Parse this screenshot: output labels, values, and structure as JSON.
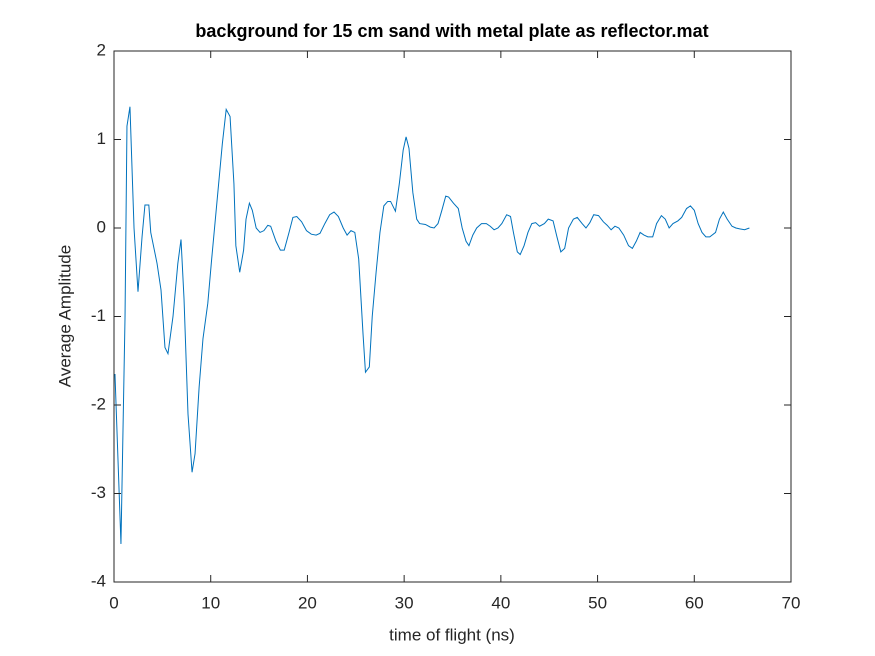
{
  "chart_data": {
    "type": "line",
    "title": "background for 15 cm sand with metal plate as reflector.mat",
    "xlabel": "time of flight (ns)",
    "ylabel": "Average Amplitude",
    "color": "#0072bd",
    "xlim": [
      0,
      70
    ],
    "xticks": [
      0,
      10,
      20,
      30,
      40,
      50,
      60,
      70
    ],
    "ylim": [
      -4,
      2
    ],
    "yticks": [
      -4,
      -3,
      -2,
      -1,
      0,
      1,
      2
    ],
    "x": [
      0.1,
      0.72,
      1.14,
      1.34,
      1.65,
      2.07,
      2.48,
      2.9,
      3.2,
      3.6,
      3.8,
      4.45,
      4.86,
      5.27,
      5.58,
      6.1,
      6.6,
      6.93,
      7.24,
      7.65,
      8.07,
      8.38,
      8.8,
      9.2,
      9.7,
      10.1,
      10.65,
      11.2,
      11.6,
      12.0,
      12.4,
      12.6,
      13.0,
      13.4,
      13.65,
      14.0,
      14.3,
      14.7,
      15.1,
      15.5,
      15.9,
      16.2,
      16.75,
      17.2,
      17.6,
      18.1,
      18.5,
      18.9,
      19.4,
      19.9,
      20.4,
      20.9,
      21.3,
      21.8,
      22.3,
      22.75,
      23.2,
      23.7,
      24.1,
      24.5,
      24.9,
      25.3,
      25.75,
      26.0,
      26.4,
      26.7,
      27.1,
      27.5,
      27.9,
      28.3,
      28.6,
      29.1,
      29.5,
      29.9,
      30.2,
      30.5,
      30.9,
      31.3,
      31.6,
      32.2,
      32.7,
      33.1,
      33.5,
      33.9,
      34.3,
      34.6,
      35.1,
      35.6,
      36.0,
      36.4,
      36.7,
      37.1,
      37.5,
      38.0,
      38.5,
      38.9,
      39.3,
      39.7,
      40.1,
      40.6,
      41.0,
      41.3,
      41.7,
      42.0,
      42.4,
      42.8,
      43.2,
      43.6,
      44.0,
      44.5,
      44.9,
      45.4,
      45.8,
      46.2,
      46.6,
      47.0,
      47.5,
      47.9,
      48.4,
      48.8,
      49.2,
      49.6,
      50.1,
      50.6,
      51.0,
      51.4,
      51.8,
      52.2,
      52.7,
      53.2,
      53.6,
      54.0,
      54.4,
      54.8,
      55.2,
      55.7,
      56.1,
      56.6,
      57.0,
      57.4,
      57.8,
      58.3,
      58.7,
      59.2,
      59.6,
      60.0,
      60.4,
      60.8,
      61.2,
      61.6,
      62.2,
      62.6,
      63.0,
      63.4,
      63.9,
      64.3,
      64.7,
      65.2,
      65.7
    ],
    "values": [
      -1.65,
      -3.57,
      -1.0,
      1.15,
      1.37,
      0.0,
      -0.72,
      -0.1,
      0.26,
      0.26,
      -0.05,
      -0.4,
      -0.7,
      -1.35,
      -1.42,
      -1.0,
      -0.4,
      -0.13,
      -0.8,
      -2.1,
      -2.76,
      -2.55,
      -1.8,
      -1.25,
      -0.85,
      -0.35,
      0.3,
      0.95,
      1.34,
      1.26,
      0.5,
      -0.2,
      -0.5,
      -0.25,
      0.1,
      0.28,
      0.2,
      0.0,
      -0.05,
      -0.03,
      0.03,
      0.02,
      -0.15,
      -0.25,
      -0.25,
      -0.05,
      0.12,
      0.13,
      0.07,
      -0.03,
      -0.07,
      -0.08,
      -0.06,
      0.05,
      0.15,
      0.18,
      0.13,
      0.0,
      -0.08,
      -0.03,
      -0.05,
      -0.35,
      -1.2,
      -1.63,
      -1.57,
      -1.0,
      -0.5,
      -0.05,
      0.25,
      0.3,
      0.3,
      0.19,
      0.5,
      0.88,
      1.03,
      0.9,
      0.4,
      0.1,
      0.05,
      0.04,
      0.01,
      0.0,
      0.05,
      0.2,
      0.36,
      0.35,
      0.28,
      0.22,
      0.0,
      -0.15,
      -0.2,
      -0.08,
      0.0,
      0.05,
      0.05,
      0.02,
      -0.02,
      0.0,
      0.05,
      0.15,
      0.13,
      -0.05,
      -0.27,
      -0.3,
      -0.2,
      -0.05,
      0.05,
      0.06,
      0.02,
      0.05,
      0.1,
      0.08,
      -0.1,
      -0.27,
      -0.23,
      0.0,
      0.1,
      0.12,
      0.05,
      0.0,
      0.06,
      0.15,
      0.14,
      0.07,
      0.03,
      -0.02,
      0.02,
      0.0,
      -0.08,
      -0.2,
      -0.23,
      -0.15,
      -0.05,
      -0.08,
      -0.1,
      -0.1,
      0.05,
      0.14,
      0.1,
      0.0,
      0.05,
      0.08,
      0.12,
      0.22,
      0.25,
      0.2,
      0.05,
      -0.05,
      -0.1,
      -0.1,
      -0.05,
      0.1,
      0.18,
      0.1,
      0.02,
      0.0,
      -0.01,
      -0.02,
      0.0
    ]
  }
}
